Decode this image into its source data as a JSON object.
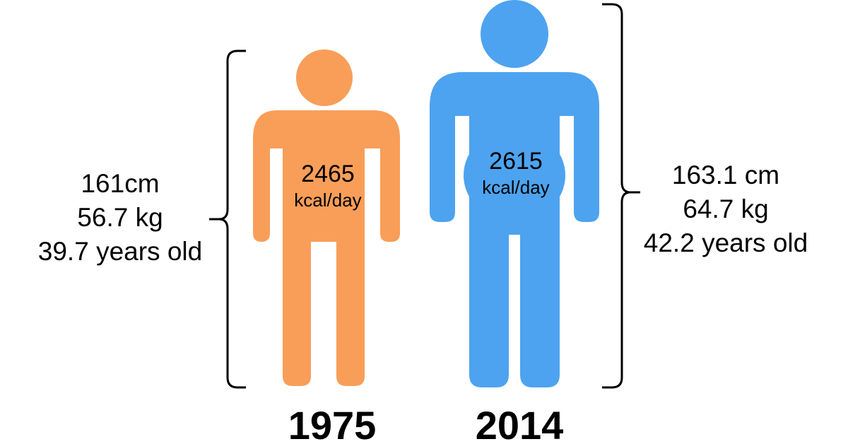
{
  "colors": {
    "person_1975": "#f99e59",
    "person_2014": "#4da3f0",
    "bracket": "#000000"
  },
  "person_1975": {
    "year": "1975",
    "height": "161cm",
    "weight": "56.7 kg",
    "age": "39.7 years old",
    "kcal_value": "2465",
    "kcal_unit": "kcal/day"
  },
  "person_2014": {
    "year": "2014",
    "height": "163.1 cm",
    "weight": "64.7 kg",
    "age": "42.2 years old",
    "kcal_value": "2615",
    "kcal_unit": "kcal/day"
  }
}
